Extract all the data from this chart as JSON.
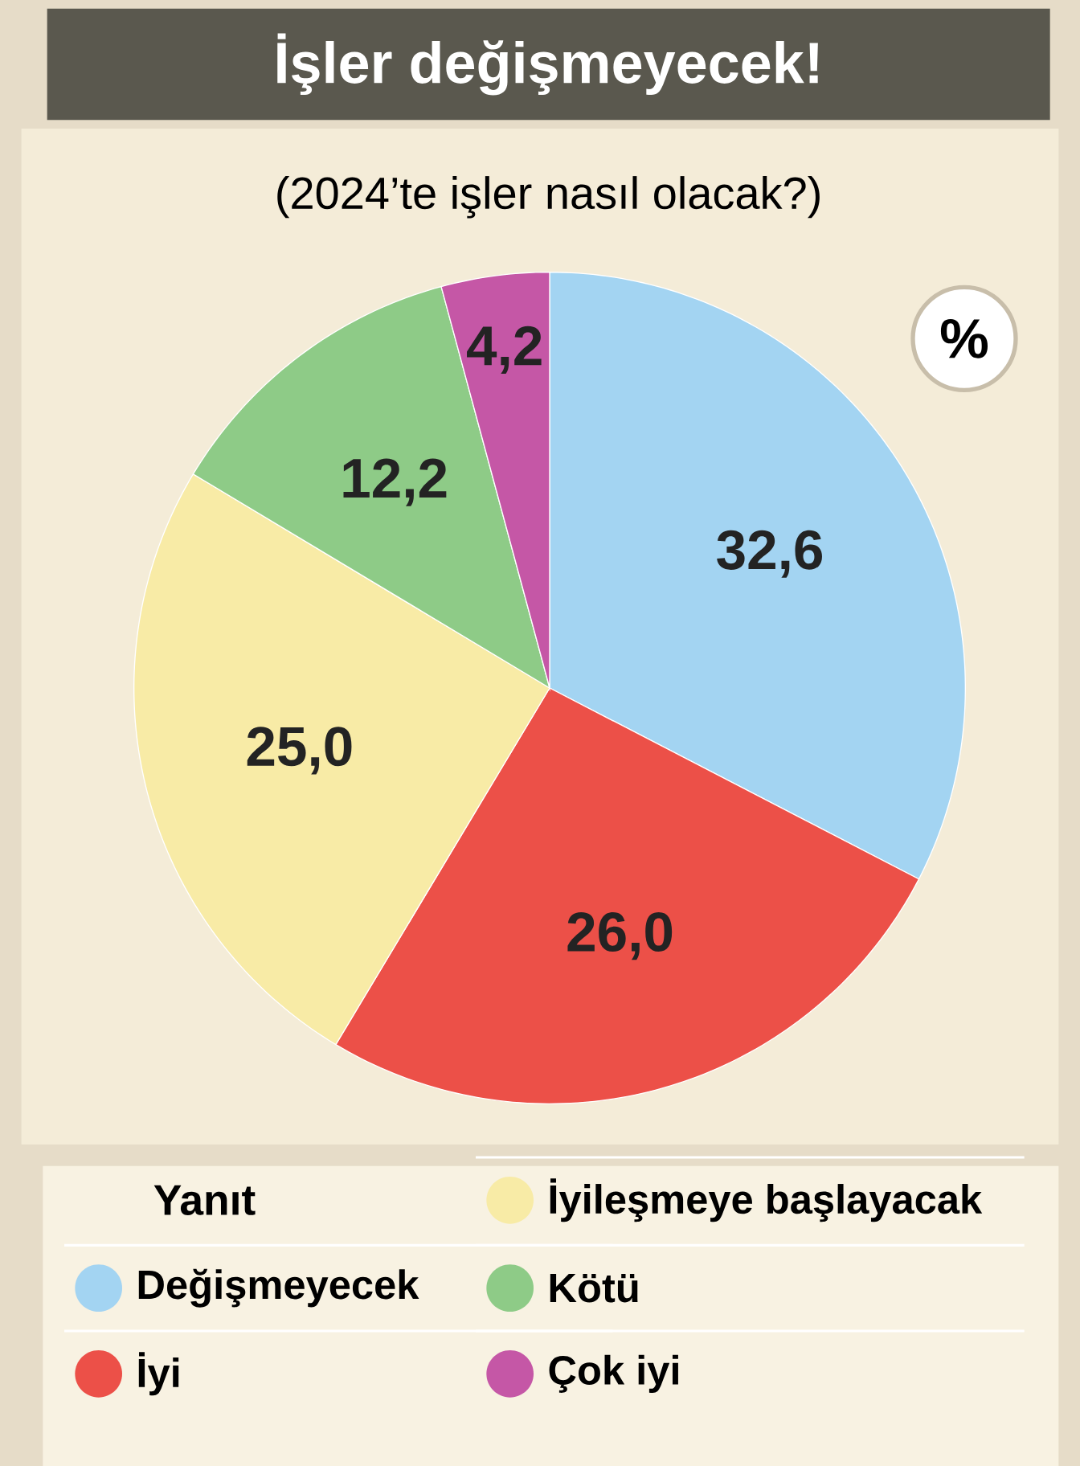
{
  "chart_data": {
    "type": "pie",
    "title": "İşler değişmeyecek!",
    "subtitle": "(2024’te işler nasıl olacak?)",
    "legend_title": "Yanıt",
    "legend": "bottom",
    "annotations": [
      "%"
    ],
    "categories": [
      "Değişmeyecek",
      "İyi",
      "İyileşmeye başlayacak",
      "Kötü",
      "Çok iyi"
    ],
    "values": [
      32.6,
      26.0,
      25.0,
      12.2,
      4.2
    ],
    "value_labels": [
      "32,6",
      "26,0",
      "25,0",
      "12,2",
      "4,2"
    ],
    "colors": [
      "#a3d4f2",
      "#ec5048",
      "#f8eba6",
      "#8ecb87",
      "#c557a6"
    ]
  }
}
